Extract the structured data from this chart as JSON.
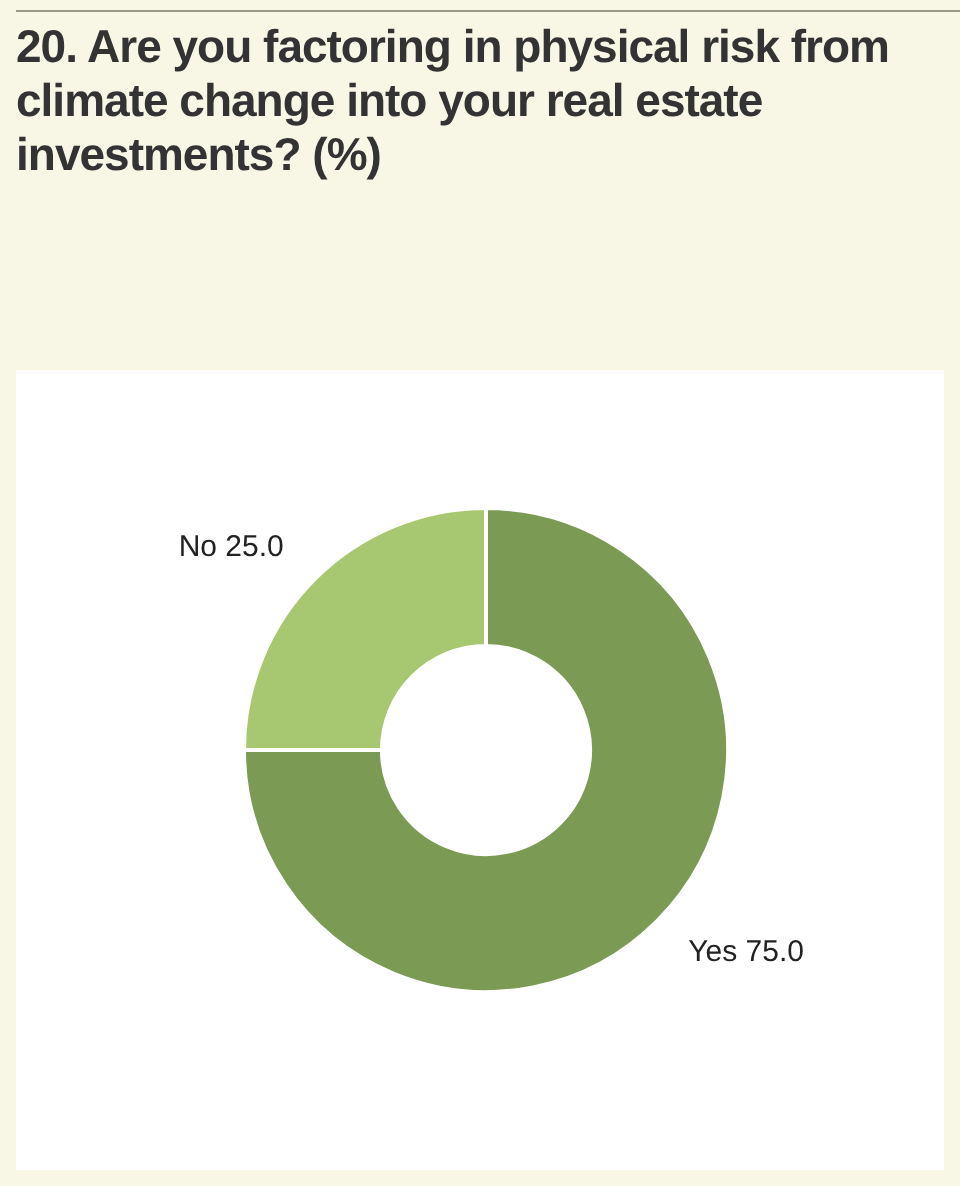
{
  "chart_data": {
    "type": "donut",
    "title": "20. Are you factoring in physical risk from climate change into your real estate investments? (%)",
    "categories": [
      "Yes",
      "No"
    ],
    "values": [
      75,
      25
    ],
    "value_labels": [
      "75.0",
      "25.0"
    ],
    "colors": [
      "#7b9a53",
      "#a7c870"
    ],
    "legend": false
  }
}
